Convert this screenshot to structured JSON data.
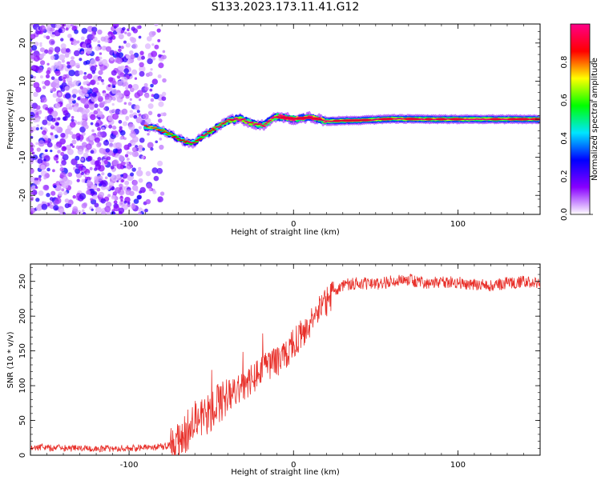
{
  "title": "S133.2023.173.11.41.G12",
  "chart_data": [
    {
      "type": "heatmap",
      "xlabel": "Height of straight line (km)",
      "ylabel": "Frequency (Hz)",
      "xlim": [
        -160,
        150
      ],
      "ylim": [
        -25,
        25
      ],
      "x_ticks": [
        -100,
        0,
        100
      ],
      "y_ticks": [
        -20,
        -10,
        0,
        10,
        20
      ],
      "colorbar": {
        "label": "Normalized spectral amplitude",
        "range": [
          0,
          1
        ],
        "ticks": [
          "0.0",
          "0.2",
          "0.4",
          "0.6",
          "0.8"
        ],
        "colors": [
          "#ffffff",
          "#8800ff",
          "#0000ff",
          "#00e5ff",
          "#00ff00",
          "#ffff00",
          "#ff0000",
          "#ff0088"
        ]
      },
      "noise_region": {
        "x_range": [
          -160,
          -78
        ],
        "y_range": [
          -25,
          25
        ],
        "amplitude_range": [
          0.05,
          0.35
        ]
      },
      "ridge": [
        {
          "x": -90,
          "y": -2.0,
          "a": 0.35
        },
        {
          "x": -82,
          "y": -2.5,
          "a": 0.45
        },
        {
          "x": -75,
          "y": -4.0,
          "a": 0.55
        },
        {
          "x": -68,
          "y": -5.5,
          "a": 0.6
        },
        {
          "x": -62,
          "y": -6.5,
          "a": 0.6
        },
        {
          "x": -55,
          "y": -4.5,
          "a": 0.65
        },
        {
          "x": -48,
          "y": -2.5,
          "a": 0.7
        },
        {
          "x": -40,
          "y": -0.5,
          "a": 0.75
        },
        {
          "x": -33,
          "y": 0.2,
          "a": 0.8
        },
        {
          "x": -25,
          "y": -1.2,
          "a": 0.8
        },
        {
          "x": -18,
          "y": -1.5,
          "a": 0.8
        },
        {
          "x": -10,
          "y": 0.8,
          "a": 0.85
        },
        {
          "x": 0,
          "y": 0.0,
          "a": 0.9
        },
        {
          "x": 10,
          "y": 0.5,
          "a": 0.9
        },
        {
          "x": 20,
          "y": -0.5,
          "a": 0.9
        },
        {
          "x": 40,
          "y": -0.3,
          "a": 0.9
        },
        {
          "x": 60,
          "y": 0.1,
          "a": 0.92
        },
        {
          "x": 80,
          "y": 0.0,
          "a": 0.95
        },
        {
          "x": 100,
          "y": 0.0,
          "a": 0.95
        },
        {
          "x": 120,
          "y": 0.0,
          "a": 0.95
        },
        {
          "x": 150,
          "y": 0.0,
          "a": 0.95
        }
      ]
    },
    {
      "type": "line",
      "xlabel": "Height of straight line (km)",
      "ylabel": "SNR (10 * v/v)",
      "xlim": [
        -160,
        150
      ],
      "ylim": [
        0,
        275
      ],
      "x_ticks": [
        -100,
        0,
        100
      ],
      "y_ticks": [
        0,
        50,
        100,
        150,
        200,
        250
      ],
      "line_color": "#e8302a",
      "series": [
        {
          "x": [
            -160,
            -140,
            -120,
            -100,
            -85,
            -75,
            -70,
            -65,
            -60,
            -55,
            -50,
            -45,
            -40,
            -35,
            -30,
            -25,
            -20,
            -15,
            -10,
            -5,
            0,
            5,
            10,
            15,
            20,
            25,
            30,
            40,
            50,
            60,
            70,
            80,
            90,
            100,
            110,
            120,
            130,
            140,
            150
          ],
          "y": [
            12,
            10,
            9,
            10,
            11,
            14,
            20,
            35,
            45,
            55,
            65,
            75,
            85,
            95,
            100,
            110,
            120,
            130,
            135,
            145,
            160,
            175,
            190,
            205,
            220,
            235,
            245,
            248,
            245,
            250,
            252,
            248,
            250,
            248,
            246,
            244,
            248,
            250,
            245
          ]
        }
      ]
    }
  ]
}
